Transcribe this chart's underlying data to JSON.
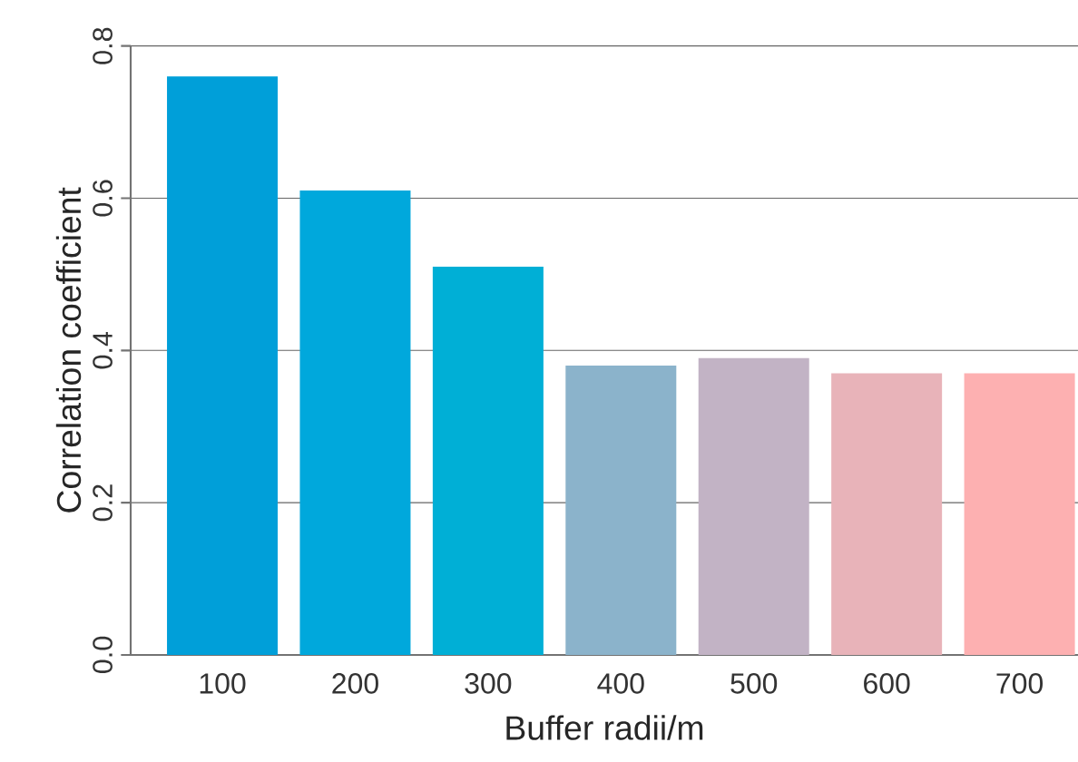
{
  "chart_data": {
    "type": "bar",
    "xlabel": "Buffer radii/m",
    "ylabel": "Correlation coefficient",
    "categories": [
      "100",
      "200",
      "300",
      "400",
      "500",
      "600",
      "700"
    ],
    "values": [
      0.76,
      0.61,
      0.51,
      0.38,
      0.39,
      0.37,
      0.37
    ],
    "colors": [
      "#009fd9",
      "#00a8dc",
      "#00afd6",
      "#8bb3cb",
      "#c2b3c5",
      "#e8b3b9",
      "#fdb0b1"
    ],
    "ylim": [
      0,
      0.8
    ],
    "yticks": [
      {
        "value": 0,
        "label": "0.0"
      },
      0.2,
      0.4,
      0.6,
      0.8
    ],
    "grid": "y"
  }
}
